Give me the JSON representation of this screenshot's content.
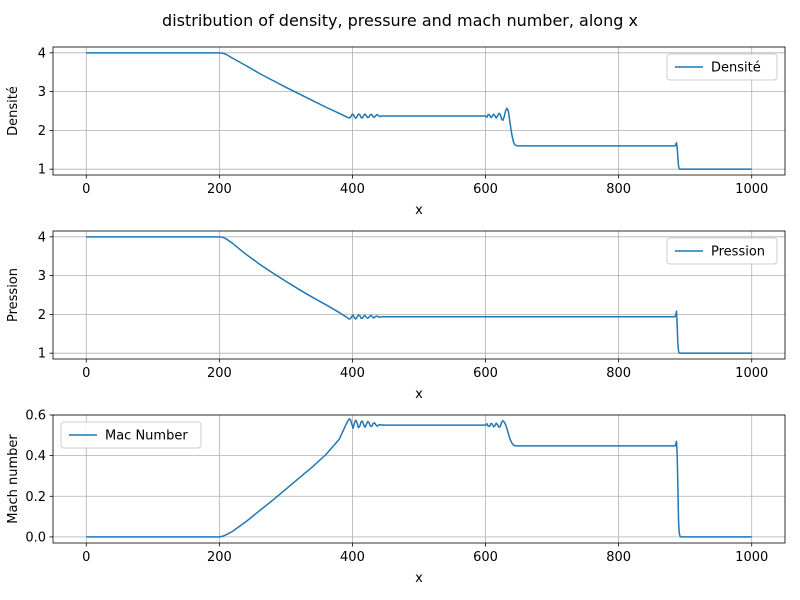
{
  "figure": {
    "title": "distribution of density, pressure and mach number, along x",
    "line_color": "#1f77b4",
    "grid_color": "#b0b0b0"
  },
  "chart_data": [
    {
      "type": "line",
      "xlabel": "x",
      "ylabel": "Densité",
      "xlim": [
        -50,
        1050
      ],
      "ylim": [
        0.85,
        4.15
      ],
      "xticks": [
        0,
        200,
        400,
        600,
        800,
        1000
      ],
      "yticks": [
        1,
        2,
        3,
        4
      ],
      "grid": true,
      "legend": "upper right",
      "series": [
        {
          "name": "Densité",
          "x": [
            0,
            200,
            205,
            210,
            220,
            240,
            260,
            280,
            300,
            320,
            340,
            360,
            380,
            392,
            395,
            397,
            399,
            401,
            403,
            405,
            407,
            409,
            411,
            413,
            415,
            417,
            419,
            421,
            423,
            425,
            427,
            429,
            431,
            433,
            435,
            437,
            439,
            441,
            445,
            450,
            600,
            602,
            604,
            606,
            608,
            610,
            612,
            614,
            616,
            618,
            620,
            622,
            624,
            626,
            628,
            630,
            632,
            634,
            636,
            638,
            640,
            642,
            644,
            646,
            648,
            650,
            655,
            660,
            700,
            800,
            885,
            886,
            887,
            888,
            889,
            890,
            891,
            892,
            893,
            895,
            1000
          ],
          "values": [
            4.0,
            4.0,
            3.99,
            3.96,
            3.86,
            3.67,
            3.47,
            3.29,
            3.11,
            2.94,
            2.77,
            2.6,
            2.44,
            2.34,
            2.32,
            2.34,
            2.4,
            2.42,
            2.35,
            2.31,
            2.36,
            2.42,
            2.41,
            2.33,
            2.32,
            2.39,
            2.42,
            2.37,
            2.33,
            2.35,
            2.41,
            2.41,
            2.35,
            2.34,
            2.38,
            2.41,
            2.38,
            2.36,
            2.37,
            2.37,
            2.37,
            2.34,
            2.41,
            2.4,
            2.33,
            2.36,
            2.42,
            2.38,
            2.32,
            2.37,
            2.44,
            2.42,
            2.3,
            2.26,
            2.35,
            2.5,
            2.57,
            2.52,
            2.3,
            2.05,
            1.85,
            1.7,
            1.63,
            1.61,
            1.6,
            1.6,
            1.6,
            1.6,
            1.6,
            1.6,
            1.6,
            1.65,
            1.68,
            1.55,
            1.3,
            1.08,
            1.02,
            1.0,
            1.0,
            1.0,
            1.0
          ]
        }
      ]
    },
    {
      "type": "line",
      "xlabel": "x",
      "ylabel": "Pression",
      "xlim": [
        -50,
        1050
      ],
      "ylim": [
        0.85,
        4.15
      ],
      "xticks": [
        0,
        200,
        400,
        600,
        800,
        1000
      ],
      "yticks": [
        1,
        2,
        3,
        4
      ],
      "grid": true,
      "legend": "upper right",
      "series": [
        {
          "name": "Pression",
          "x": [
            0,
            200,
            205,
            210,
            220,
            240,
            260,
            280,
            300,
            320,
            340,
            360,
            380,
            392,
            395,
            397,
            399,
            401,
            403,
            405,
            407,
            409,
            411,
            413,
            415,
            417,
            419,
            421,
            423,
            425,
            427,
            429,
            431,
            433,
            435,
            437,
            439,
            441,
            445,
            450,
            885,
            886,
            887,
            888,
            889,
            890,
            891,
            892,
            893,
            895,
            1000
          ],
          "values": [
            4.0,
            4.0,
            3.99,
            3.95,
            3.83,
            3.55,
            3.3,
            3.07,
            2.85,
            2.64,
            2.44,
            2.25,
            2.05,
            1.92,
            1.88,
            1.89,
            1.95,
            1.98,
            1.91,
            1.88,
            1.93,
            1.98,
            1.97,
            1.9,
            1.9,
            1.96,
            1.97,
            1.92,
            1.9,
            1.93,
            1.97,
            1.96,
            1.91,
            1.92,
            1.95,
            1.96,
            1.93,
            1.93,
            1.94,
            1.94,
            1.94,
            2.0,
            2.08,
            1.7,
            1.25,
            1.05,
            1.01,
            1.0,
            1.0,
            1.0,
            1.0
          ]
        }
      ]
    },
    {
      "type": "line",
      "xlabel": "x",
      "ylabel": "Mach number",
      "xlim": [
        -50,
        1050
      ],
      "ylim": [
        -0.03,
        0.6
      ],
      "xticks": [
        0,
        200,
        400,
        600,
        800,
        1000
      ],
      "yticks": [
        0.0,
        0.2,
        0.4,
        0.6
      ],
      "ytick_labels": [
        "0.0",
        "0.2",
        "0.4",
        "0.6"
      ],
      "grid": true,
      "legend": "upper left",
      "series": [
        {
          "name": "Mac Number",
          "x": [
            0,
            200,
            205,
            210,
            220,
            240,
            260,
            280,
            300,
            320,
            340,
            360,
            380,
            392,
            395,
            397,
            399,
            401,
            403,
            405,
            407,
            409,
            411,
            413,
            415,
            417,
            419,
            421,
            423,
            425,
            427,
            429,
            431,
            433,
            435,
            437,
            439,
            441,
            445,
            450,
            600,
            602,
            604,
            606,
            608,
            610,
            612,
            614,
            616,
            618,
            620,
            622,
            624,
            626,
            628,
            630,
            632,
            634,
            636,
            638,
            640,
            642,
            644,
            646,
            648,
            650,
            655,
            660,
            700,
            800,
            885,
            886,
            887,
            888,
            889,
            890,
            891,
            892,
            893,
            895,
            1000
          ],
          "values": [
            0.0,
            0.0,
            0.003,
            0.01,
            0.028,
            0.075,
            0.128,
            0.18,
            0.235,
            0.29,
            0.345,
            0.405,
            0.48,
            0.565,
            0.58,
            0.578,
            0.555,
            0.535,
            0.56,
            0.575,
            0.56,
            0.538,
            0.545,
            0.567,
            0.57,
            0.55,
            0.54,
            0.555,
            0.568,
            0.562,
            0.545,
            0.544,
            0.558,
            0.562,
            0.552,
            0.545,
            0.549,
            0.553,
            0.55,
            0.55,
            0.55,
            0.557,
            0.545,
            0.544,
            0.558,
            0.556,
            0.542,
            0.546,
            0.56,
            0.552,
            0.54,
            0.543,
            0.562,
            0.572,
            0.566,
            0.553,
            0.535,
            0.512,
            0.49,
            0.472,
            0.46,
            0.452,
            0.449,
            0.448,
            0.448,
            0.448,
            0.448,
            0.448,
            0.448,
            0.448,
            0.448,
            0.46,
            0.47,
            0.4,
            0.25,
            0.08,
            0.02,
            0.005,
            0.001,
            0.0,
            0.0
          ]
        }
      ]
    }
  ]
}
